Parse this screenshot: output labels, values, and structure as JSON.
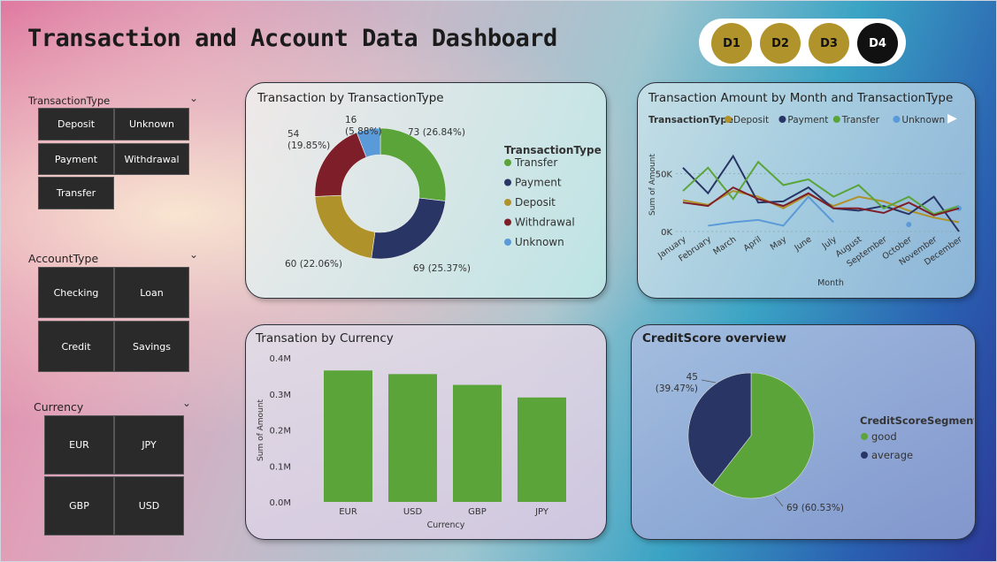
{
  "header": {
    "title": "Transaction and Account Data Dashboard"
  },
  "nav": [
    {
      "label": "D1",
      "color": "#b0932a",
      "active": false
    },
    {
      "label": "D2",
      "color": "#b0932a",
      "active": false
    },
    {
      "label": "D3",
      "color": "#b0932a",
      "active": false
    },
    {
      "label": "D4",
      "color": "#111111",
      "active": true
    }
  ],
  "slicers": {
    "transaction_type": {
      "title": "TransactionType",
      "items": [
        "Deposit",
        "Unknown",
        "Payment",
        "Withdrawal",
        "Transfer"
      ]
    },
    "account_type": {
      "title": "AccountType",
      "items": [
        "Checking",
        "Loan",
        "Credit",
        "Savings"
      ]
    },
    "currency": {
      "title": "Currency",
      "items": [
        "EUR",
        "JPY",
        "GBP",
        "USD"
      ]
    }
  },
  "charts": {
    "donut_title": "Transaction by TransactionType",
    "line_title": "Transaction Amount by Month and TransactionType",
    "bar_title": "Transation by Currency",
    "pie_title": "CreditScore overview"
  },
  "chart_data": [
    {
      "type": "pie",
      "subtype": "donut",
      "title": "Transaction by TransactionType",
      "legend_title": "TransactionType",
      "legend_position": "right",
      "slices": [
        {
          "name": "Transfer",
          "value": 73,
          "label": "73 (26.84%)",
          "color": "#5aa43a"
        },
        {
          "name": "Payment",
          "value": 69,
          "label": "69 (25.37%)",
          "color": "#283565"
        },
        {
          "name": "Deposit",
          "value": 60,
          "label": "60 (22.06%)",
          "color": "#b0922a"
        },
        {
          "name": "Withdrawal",
          "value": 54,
          "label": "54\n(19.85%)",
          "color": "#7e1e28"
        },
        {
          "name": "Unknown",
          "value": 16,
          "label": "16\n(5.88%)",
          "color": "#5a9ad8"
        }
      ]
    },
    {
      "type": "line",
      "title": "Transaction Amount by Month and TransactionType",
      "legend_title": "TransactionType",
      "legend_position": "top",
      "xlabel": "Month",
      "ylabel": "Sum of Amount",
      "y_ticks": [
        "0K",
        "50K"
      ],
      "ylim": [
        0,
        80000
      ],
      "categories": [
        "January",
        "February",
        "March",
        "April",
        "May",
        "June",
        "July",
        "August",
        "September",
        "October",
        "November",
        "December"
      ],
      "series": [
        {
          "name": "Deposit",
          "color": "#b0922a",
          "values": [
            27000,
            23000,
            35000,
            30000,
            20000,
            32000,
            22000,
            30000,
            26000,
            18000,
            12000,
            8000
          ]
        },
        {
          "name": "Payment",
          "color": "#283565",
          "values": [
            55000,
            33000,
            65000,
            25000,
            26000,
            38000,
            20000,
            18000,
            22000,
            15000,
            30000,
            0
          ]
        },
        {
          "name": "Transfer",
          "color": "#5aa43a",
          "values": [
            35000,
            55000,
            28000,
            60000,
            40000,
            45000,
            30000,
            40000,
            20000,
            30000,
            15000,
            22000
          ]
        },
        {
          "name": "Unknown",
          "color": "#5a9ad8",
          "values": [
            null,
            5000,
            8000,
            10000,
            5000,
            30000,
            8000,
            null,
            null,
            6000,
            null,
            20000
          ]
        },
        {
          "name": "Withdrawal",
          "color": "#7e1e28",
          "values": [
            25000,
            22000,
            38000,
            28000,
            22000,
            33000,
            20000,
            20000,
            16000,
            25000,
            14000,
            20000
          ]
        }
      ]
    },
    {
      "type": "bar",
      "title": "Transation by Currency",
      "xlabel": "Currency",
      "ylabel": "Sum of Amount",
      "y_ticks": [
        "0.0M",
        "0.1M",
        "0.2M",
        "0.3M",
        "0.4M"
      ],
      "ylim": [
        0,
        0.4
      ],
      "categories": [
        "EUR",
        "USD",
        "GBP",
        "JPY"
      ],
      "values": [
        0.365,
        0.355,
        0.325,
        0.29
      ],
      "color": "#5aa43a"
    },
    {
      "type": "pie",
      "title": "CreditScore overview",
      "legend_title": "CreditScoreSegment",
      "legend_position": "right",
      "slices": [
        {
          "name": "good",
          "value": 69,
          "label": "69 (60.53%)",
          "color": "#5aa43a"
        },
        {
          "name": "average",
          "value": 45,
          "label": "45\n(39.47%)",
          "color": "#283565"
        }
      ]
    }
  ]
}
